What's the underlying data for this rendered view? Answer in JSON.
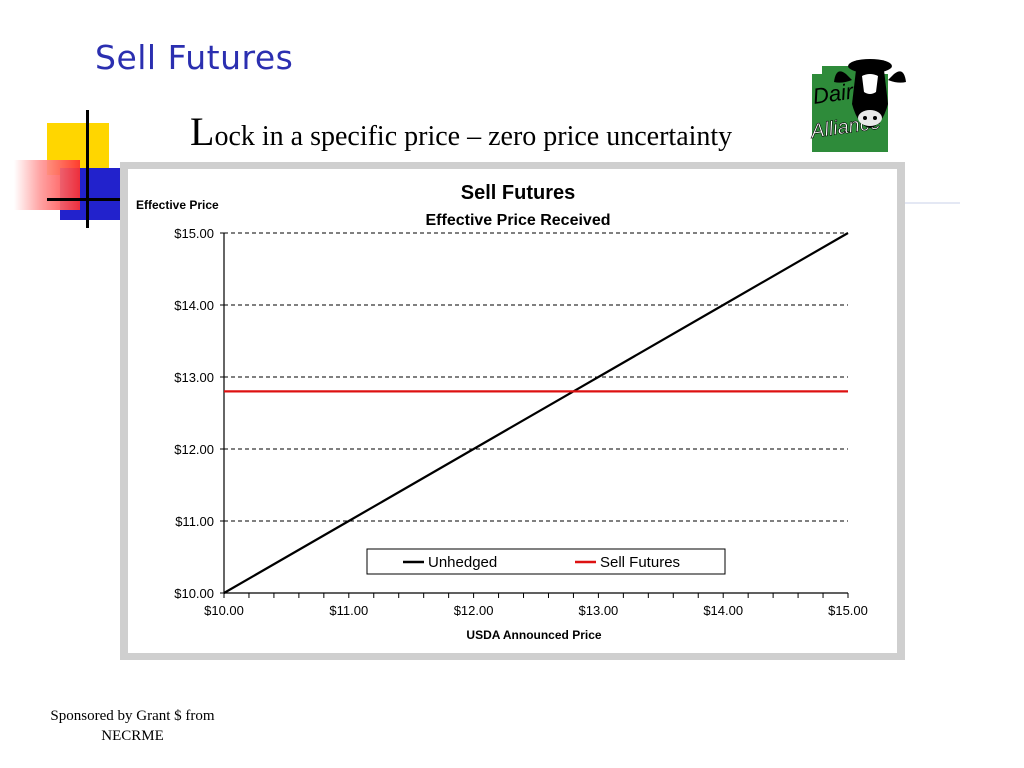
{
  "slide": {
    "title": "Sell Futures",
    "subtitle_initial": "L",
    "subtitle_rest": "ock in a specific price – zero price uncertainty",
    "sponsor_line1": "Sponsored by Grant $ from",
    "sponsor_line2": "NECRME"
  },
  "logo": {
    "line1": "Dairy",
    "line2": "Alliance"
  },
  "colors": {
    "title": "#2b2fb0",
    "unhedged": "#000000",
    "sell_futures": "#dd1111",
    "deco_yellow": "#ffd600",
    "deco_blue": "#2222cc",
    "deco_red": "#ff3333",
    "logo_green": "#2e8b3a"
  },
  "chart_data": {
    "type": "line",
    "title": "Sell Futures",
    "subtitle": "Effective Price Received",
    "ylabel": "Effective Price",
    "xlabel": "USDA Announced Price",
    "xlim": [
      10,
      15
    ],
    "ylim": [
      10,
      15
    ],
    "x_ticks": [
      "$10.00",
      "$11.00",
      "$12.00",
      "$13.00",
      "$14.00",
      "$15.00"
    ],
    "y_ticks": [
      "$10.00",
      "$11.00",
      "$12.00",
      "$13.00",
      "$14.00",
      "$15.00"
    ],
    "grid": "horizontal dashed",
    "legend_position": "bottom-center",
    "series": [
      {
        "name": "Unhedged",
        "color": "#000000",
        "x": [
          10,
          11,
          12,
          13,
          14,
          15
        ],
        "y": [
          10,
          11,
          12,
          13,
          14,
          15
        ]
      },
      {
        "name": "Sell Futures",
        "color": "#dd1111",
        "x": [
          10,
          15
        ],
        "y": [
          12.8,
          12.8
        ]
      }
    ]
  }
}
